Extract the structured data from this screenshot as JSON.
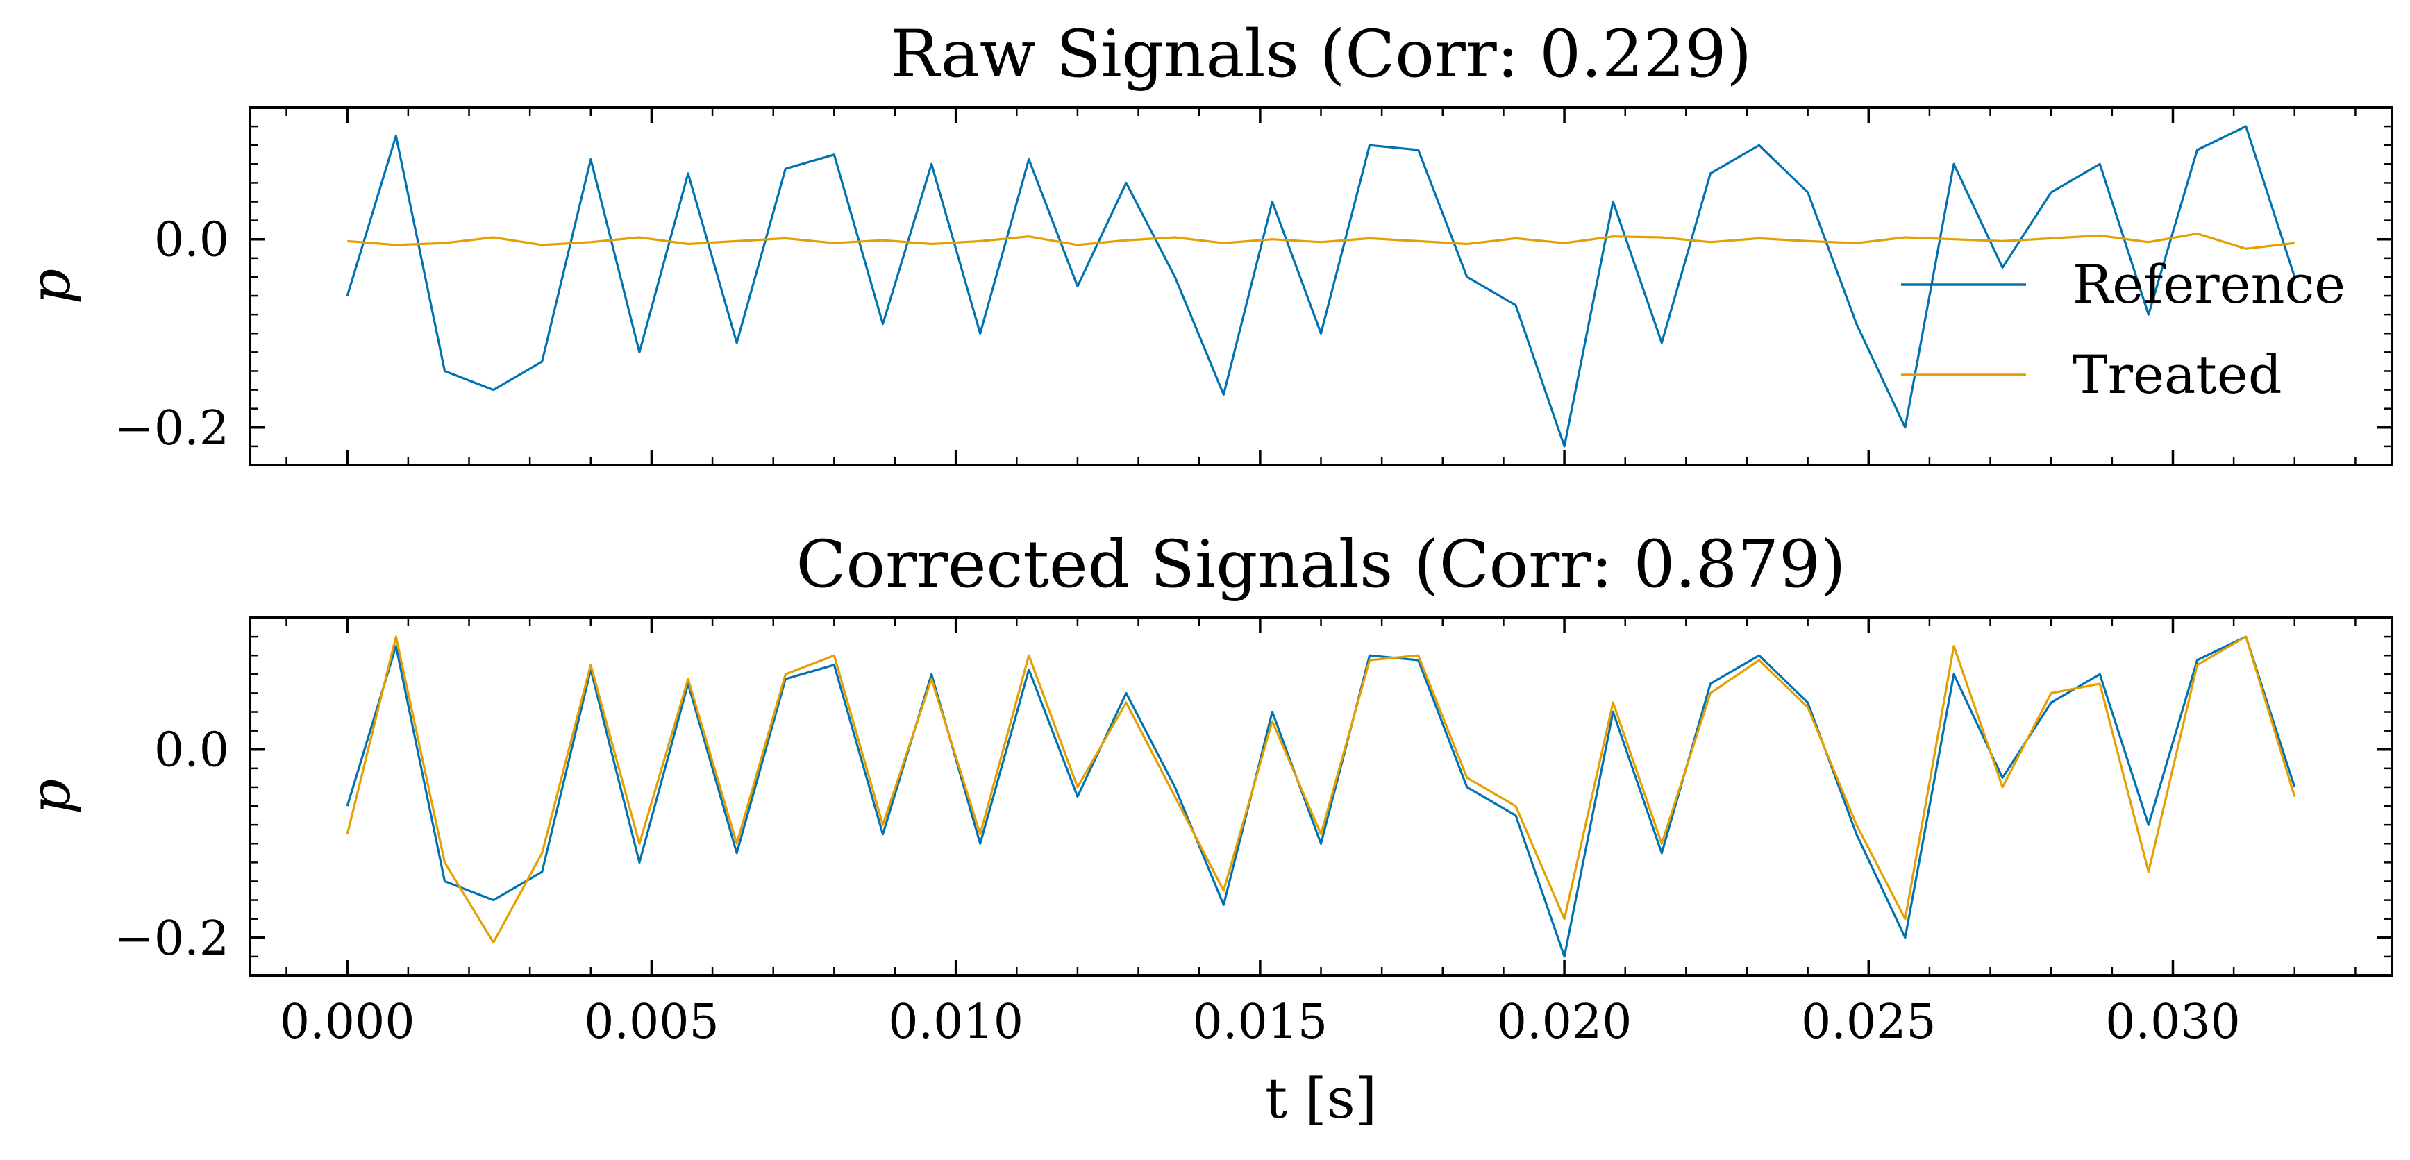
{
  "chart_data": [
    {
      "type": "line",
      "title": "Raw Signals (Corr: 0.229)",
      "xlabel": "",
      "ylabel": "p",
      "xlim": [
        -0.0016,
        0.0336
      ],
      "ylim": [
        -0.24,
        0.14
      ],
      "xticks": [
        0.0,
        0.005,
        0.01,
        0.015,
        0.02,
        0.025,
        0.03
      ],
      "xtick_labels": [],
      "yticks": [
        -0.2,
        0.0
      ],
      "ytick_labels": [
        "−0.2",
        "0.0"
      ],
      "grid": false,
      "legend": {
        "placement": "right",
        "entries": [
          "Reference",
          "Treated"
        ]
      },
      "colors": {
        "Reference": "#0072b2",
        "Treated": "#e69f00"
      },
      "series": [
        {
          "name": "Reference",
          "x": [
            0.0,
            0.0008,
            0.0016,
            0.0024,
            0.0032,
            0.004,
            0.0048,
            0.0056,
            0.0064,
            0.0072,
            0.008,
            0.0088,
            0.0096,
            0.0104,
            0.0112,
            0.012,
            0.0128,
            0.0136,
            0.0144,
            0.0152,
            0.016,
            0.0168,
            0.0176,
            0.0184,
            0.0192,
            0.02,
            0.0208,
            0.0216,
            0.0224,
            0.0232,
            0.024,
            0.0248,
            0.0256,
            0.0264,
            0.0272,
            0.028,
            0.0288,
            0.0296,
            0.0304,
            0.0312,
            0.032
          ],
          "y": [
            -0.06,
            0.11,
            -0.14,
            -0.16,
            -0.13,
            0.085,
            -0.12,
            0.07,
            -0.11,
            0.075,
            0.09,
            -0.09,
            0.08,
            -0.1,
            0.085,
            -0.05,
            0.06,
            -0.04,
            -0.165,
            0.04,
            -0.1,
            0.1,
            0.095,
            -0.04,
            -0.07,
            -0.22,
            0.04,
            -0.11,
            0.07,
            0.1,
            0.05,
            -0.09,
            -0.2,
            0.08,
            -0.03,
            0.05,
            0.08,
            -0.08,
            0.095,
            0.12,
            -0.04
          ]
        },
        {
          "name": "Treated",
          "x": [
            0.0,
            0.0008,
            0.0016,
            0.0024,
            0.0032,
            0.004,
            0.0048,
            0.0056,
            0.0064,
            0.0072,
            0.008,
            0.0088,
            0.0096,
            0.0104,
            0.0112,
            0.012,
            0.0128,
            0.0136,
            0.0144,
            0.0152,
            0.016,
            0.0168,
            0.0176,
            0.0184,
            0.0192,
            0.02,
            0.0208,
            0.0216,
            0.0224,
            0.0232,
            0.024,
            0.0248,
            0.0256,
            0.0264,
            0.0272,
            0.028,
            0.0288,
            0.0296,
            0.0304,
            0.0312,
            0.032
          ],
          "y": [
            -0.002,
            -0.006,
            -0.004,
            0.002,
            -0.006,
            -0.003,
            0.002,
            -0.005,
            -0.002,
            0.001,
            -0.004,
            -0.001,
            -0.005,
            -0.002,
            0.003,
            -0.006,
            -0.001,
            0.002,
            -0.004,
            0.0,
            -0.003,
            0.001,
            -0.002,
            -0.005,
            0.001,
            -0.004,
            0.003,
            0.002,
            -0.003,
            0.001,
            -0.002,
            -0.004,
            0.002,
            0.0,
            -0.002,
            0.001,
            0.004,
            -0.003,
            0.006,
            -0.01,
            -0.004
          ]
        }
      ]
    },
    {
      "type": "line",
      "title": "Corrected Signals (Corr: 0.879)",
      "xlabel": "t [s]",
      "ylabel": "p",
      "xlim": [
        -0.0016,
        0.0336
      ],
      "ylim": [
        -0.24,
        0.14
      ],
      "xticks": [
        0.0,
        0.005,
        0.01,
        0.015,
        0.02,
        0.025,
        0.03
      ],
      "xtick_labels": [
        "0.000",
        "0.005",
        "0.010",
        "0.015",
        "0.020",
        "0.025",
        "0.030"
      ],
      "yticks": [
        -0.2,
        0.0
      ],
      "ytick_labels": [
        "−0.2",
        "0.0"
      ],
      "grid": false,
      "colors": {
        "Reference": "#0072b2",
        "Treated": "#e69f00"
      },
      "series": [
        {
          "name": "Reference",
          "x": [
            0.0,
            0.0008,
            0.0016,
            0.0024,
            0.0032,
            0.004,
            0.0048,
            0.0056,
            0.0064,
            0.0072,
            0.008,
            0.0088,
            0.0096,
            0.0104,
            0.0112,
            0.012,
            0.0128,
            0.0136,
            0.0144,
            0.0152,
            0.016,
            0.0168,
            0.0176,
            0.0184,
            0.0192,
            0.02,
            0.0208,
            0.0216,
            0.0224,
            0.0232,
            0.024,
            0.0248,
            0.0256,
            0.0264,
            0.0272,
            0.028,
            0.0288,
            0.0296,
            0.0304,
            0.0312,
            0.032
          ],
          "y": [
            -0.06,
            0.11,
            -0.14,
            -0.16,
            -0.13,
            0.085,
            -0.12,
            0.07,
            -0.11,
            0.075,
            0.09,
            -0.09,
            0.08,
            -0.1,
            0.085,
            -0.05,
            0.06,
            -0.04,
            -0.165,
            0.04,
            -0.1,
            0.1,
            0.095,
            -0.04,
            -0.07,
            -0.22,
            0.04,
            -0.11,
            0.07,
            0.1,
            0.05,
            -0.09,
            -0.2,
            0.08,
            -0.03,
            0.05,
            0.08,
            -0.08,
            0.095,
            0.12,
            -0.04
          ]
        },
        {
          "name": "Treated",
          "x": [
            0.0,
            0.0008,
            0.0016,
            0.0024,
            0.0032,
            0.004,
            0.0048,
            0.0056,
            0.0064,
            0.0072,
            0.008,
            0.0088,
            0.0096,
            0.0104,
            0.0112,
            0.012,
            0.0128,
            0.0136,
            0.0144,
            0.0152,
            0.016,
            0.0168,
            0.0176,
            0.0184,
            0.0192,
            0.02,
            0.0208,
            0.0216,
            0.0224,
            0.0232,
            0.024,
            0.0248,
            0.0256,
            0.0264,
            0.0272,
            0.028,
            0.0288,
            0.0296,
            0.0304,
            0.0312,
            0.032
          ],
          "y": [
            -0.09,
            0.12,
            -0.12,
            -0.205,
            -0.11,
            0.09,
            -0.1,
            0.075,
            -0.1,
            0.08,
            0.1,
            -0.08,
            0.075,
            -0.09,
            0.1,
            -0.04,
            0.05,
            -0.05,
            -0.15,
            0.03,
            -0.09,
            0.095,
            0.1,
            -0.03,
            -0.06,
            -0.18,
            0.05,
            -0.1,
            0.06,
            0.095,
            0.045,
            -0.08,
            -0.18,
            0.11,
            -0.04,
            0.06,
            0.07,
            -0.13,
            0.09,
            0.12,
            -0.05
          ]
        }
      ]
    }
  ]
}
